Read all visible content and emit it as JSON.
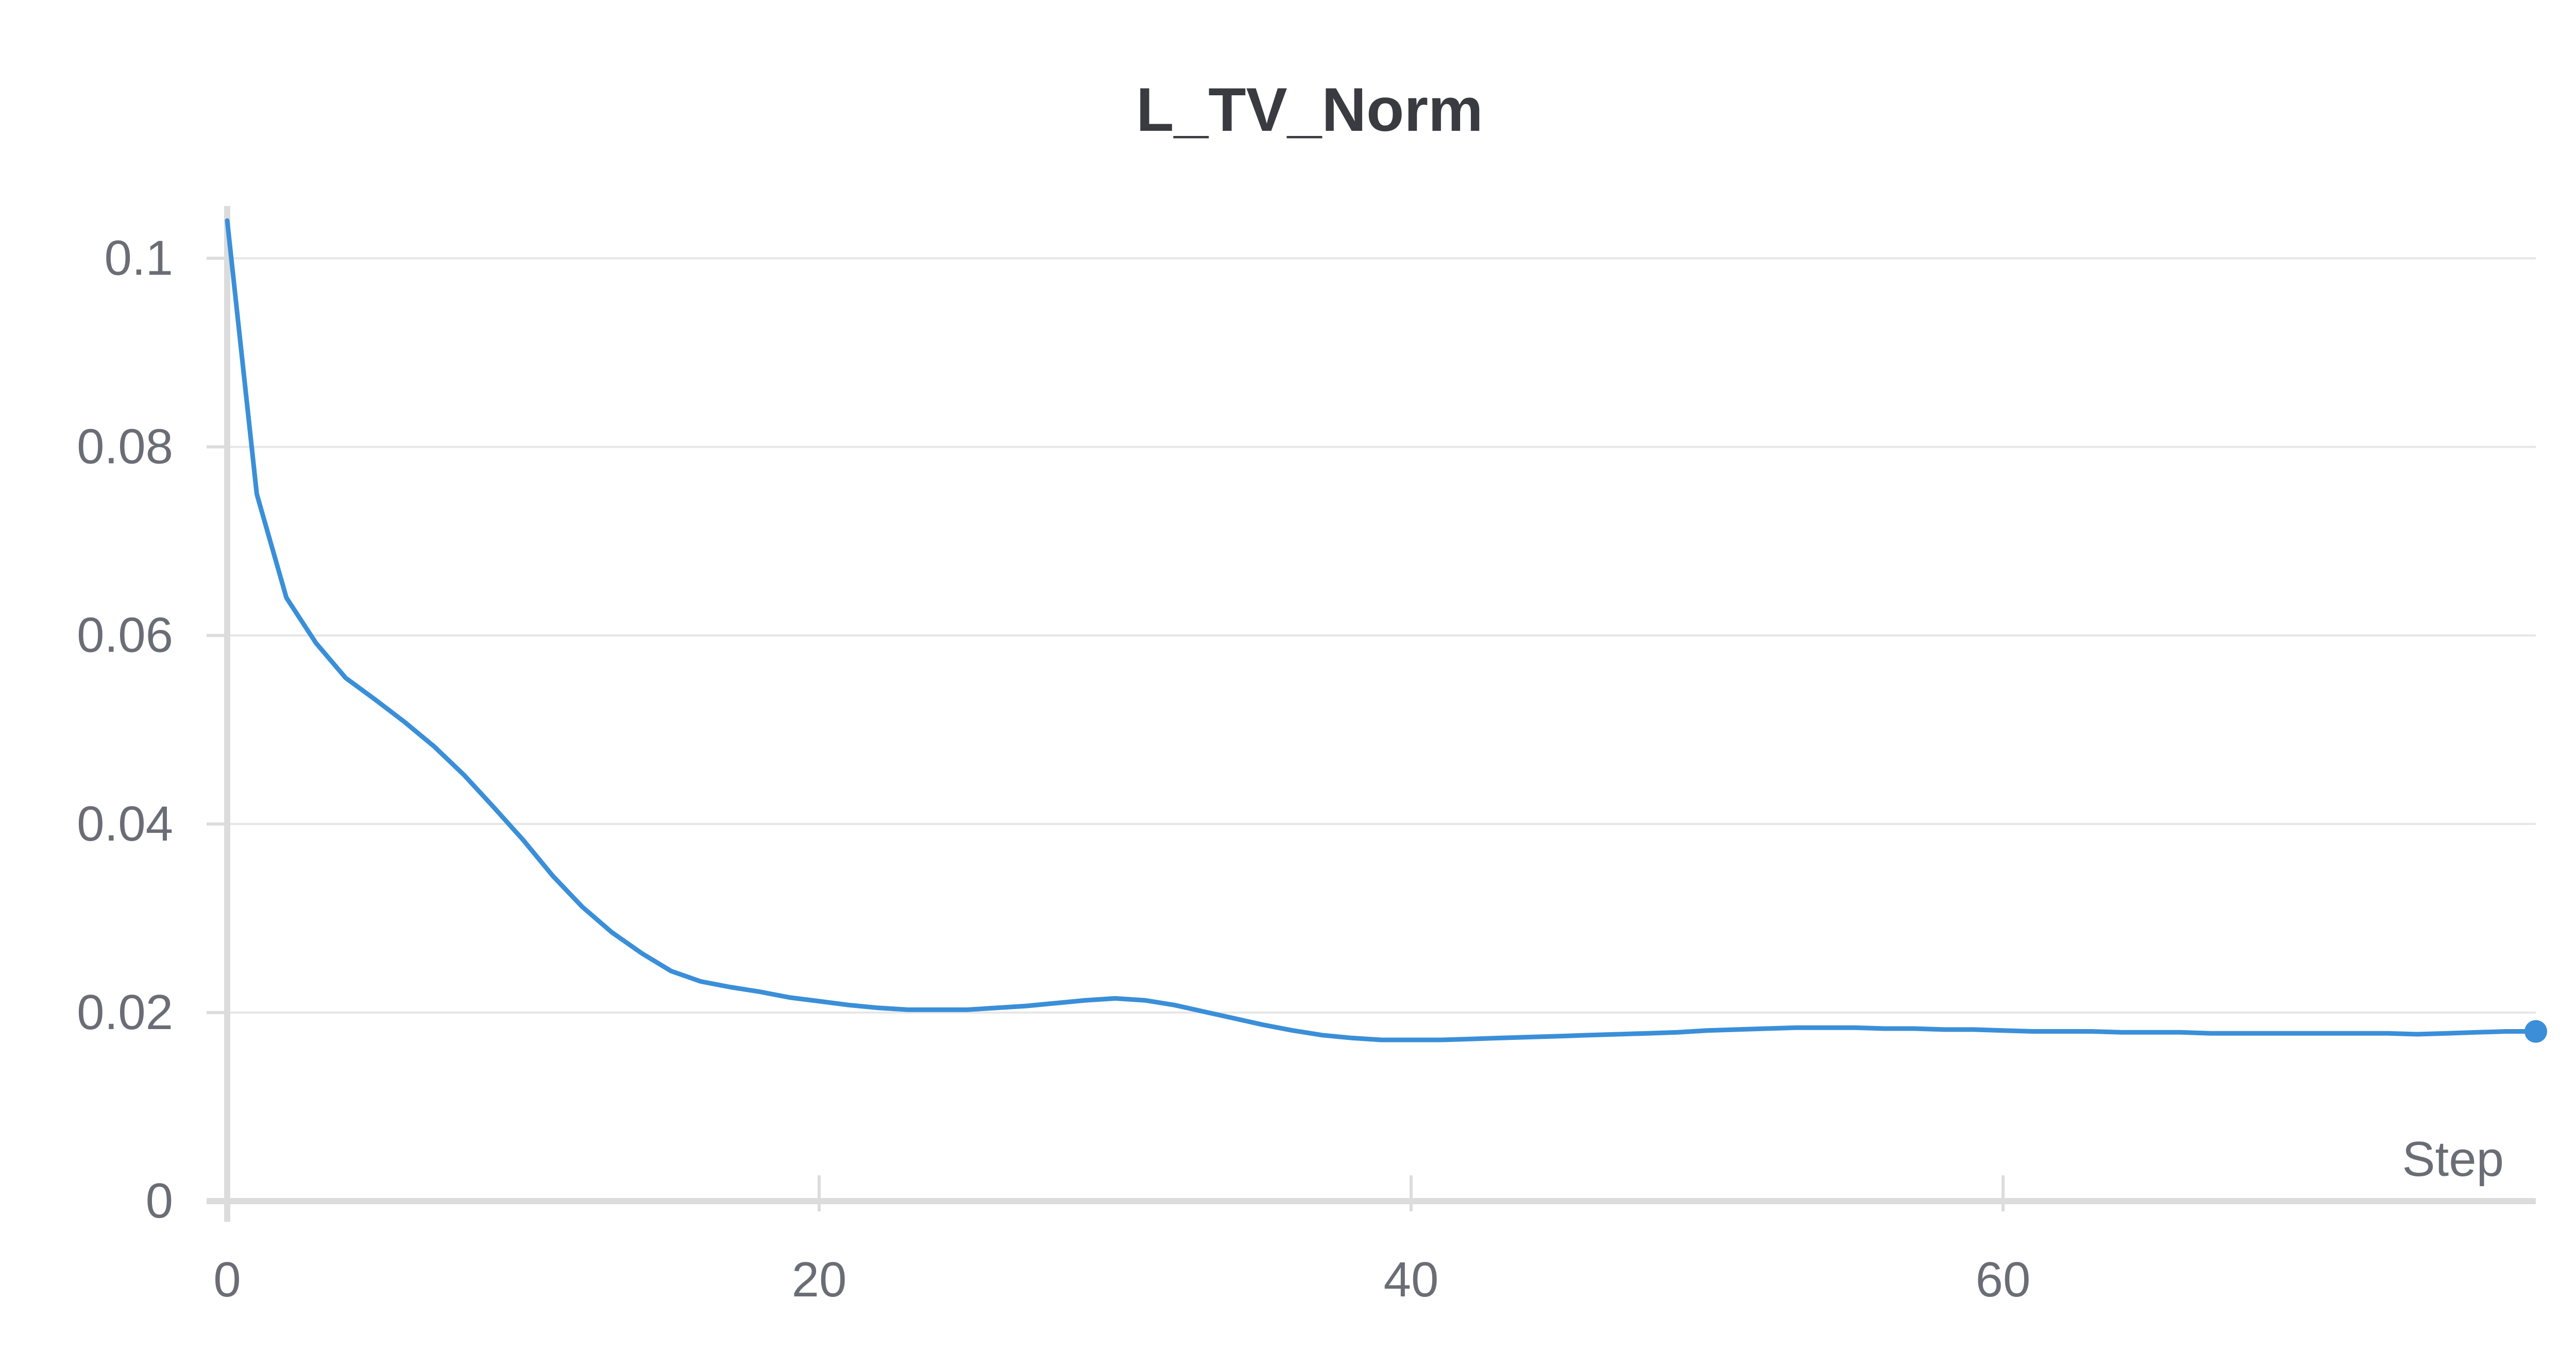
{
  "chart_data": {
    "type": "line",
    "title": "L_TV_Norm",
    "xlabel": "Step",
    "ylabel": "",
    "xlim": [
      0,
      78
    ],
    "ylim": [
      0,
      0.105
    ],
    "x_ticks": [
      0,
      20,
      40,
      60
    ],
    "x_tick_labels": [
      "0",
      "20",
      "40",
      "60"
    ],
    "y_ticks": [
      0,
      0.02,
      0.04,
      0.06,
      0.08,
      0.1
    ],
    "y_tick_labels": [
      "0",
      "0.02",
      "0.04",
      "0.06",
      "0.08",
      "0.1"
    ],
    "grid": true,
    "legend": "none",
    "colors": {
      "line": "#3a8fd8",
      "grid": "#e6e6e6",
      "axis": "#dcdcdc"
    },
    "series": [
      {
        "x": [
          0,
          1,
          2,
          3,
          4,
          5,
          6,
          7,
          8,
          9,
          10,
          11,
          12,
          13,
          14,
          15,
          16,
          17,
          18,
          19,
          20,
          21,
          22,
          23,
          24,
          25,
          26,
          27,
          28,
          29,
          30,
          31,
          32,
          33,
          34,
          35,
          36,
          37,
          38,
          39,
          40,
          41,
          42,
          43,
          44,
          45,
          46,
          47,
          48,
          49,
          50,
          51,
          52,
          53,
          54,
          55,
          56,
          57,
          58,
          59,
          60,
          61,
          62,
          63,
          64,
          65,
          66,
          67,
          68,
          69,
          70,
          71,
          72,
          73,
          74,
          75,
          76,
          77,
          78
        ],
        "values": [
          0.104,
          0.075,
          0.064,
          0.0592,
          0.0555,
          0.0532,
          0.0508,
          0.0482,
          0.0452,
          0.0418,
          0.0383,
          0.0345,
          0.0312,
          0.0285,
          0.0263,
          0.0244,
          0.0233,
          0.0227,
          0.0222,
          0.0216,
          0.0212,
          0.0208,
          0.0205,
          0.0203,
          0.0203,
          0.0203,
          0.0205,
          0.0207,
          0.021,
          0.0213,
          0.0215,
          0.0213,
          0.0208,
          0.0201,
          0.0194,
          0.0187,
          0.0181,
          0.0176,
          0.0173,
          0.0171,
          0.0171,
          0.0171,
          0.0172,
          0.0173,
          0.0174,
          0.0175,
          0.0176,
          0.0177,
          0.0178,
          0.0179,
          0.0181,
          0.0182,
          0.0183,
          0.0184,
          0.0184,
          0.0184,
          0.0183,
          0.0183,
          0.0182,
          0.0182,
          0.0181,
          0.018,
          0.018,
          0.018,
          0.0179,
          0.0179,
          0.0179,
          0.0178,
          0.0178,
          0.0178,
          0.0178,
          0.0178,
          0.0178,
          0.0178,
          0.0177,
          0.0178,
          0.0179,
          0.018,
          0.018
        ]
      }
    ]
  }
}
